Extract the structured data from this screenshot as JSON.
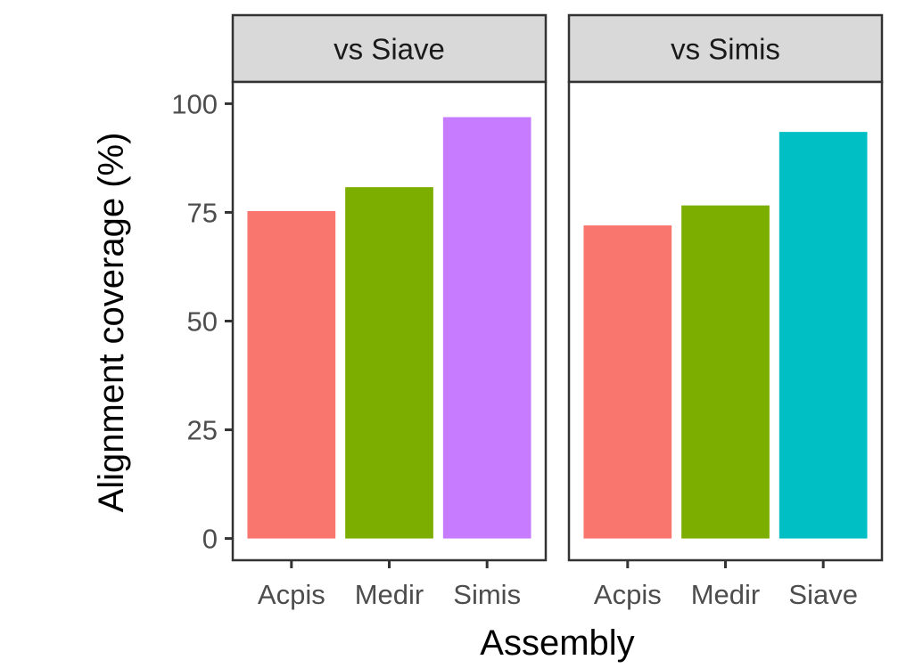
{
  "chart_data": {
    "type": "bar",
    "ylabel": "Alignment coverage (%)",
    "xlabel": "Assembly",
    "ylim": [
      -5,
      105
    ],
    "yticks": [
      0,
      25,
      50,
      75,
      100
    ],
    "grid": false,
    "facets": [
      {
        "strip": "vs Siave",
        "categories": [
          "Acpis",
          "Medir",
          "Simis"
        ],
        "values": [
          75.3,
          80.8,
          96.9
        ],
        "colors": [
          "#F8766D",
          "#7CAE00",
          "#C77CFF"
        ]
      },
      {
        "strip": "vs Simis",
        "categories": [
          "Acpis",
          "Medir",
          "Siave"
        ],
        "values": [
          72.0,
          76.6,
          93.5
        ],
        "colors": [
          "#F8766D",
          "#7CAE00",
          "#00BFC4"
        ]
      }
    ]
  },
  "style": {
    "panel_border": "#333333",
    "strip_fill": "#d9d9d9",
    "tick_color": "#333333"
  }
}
